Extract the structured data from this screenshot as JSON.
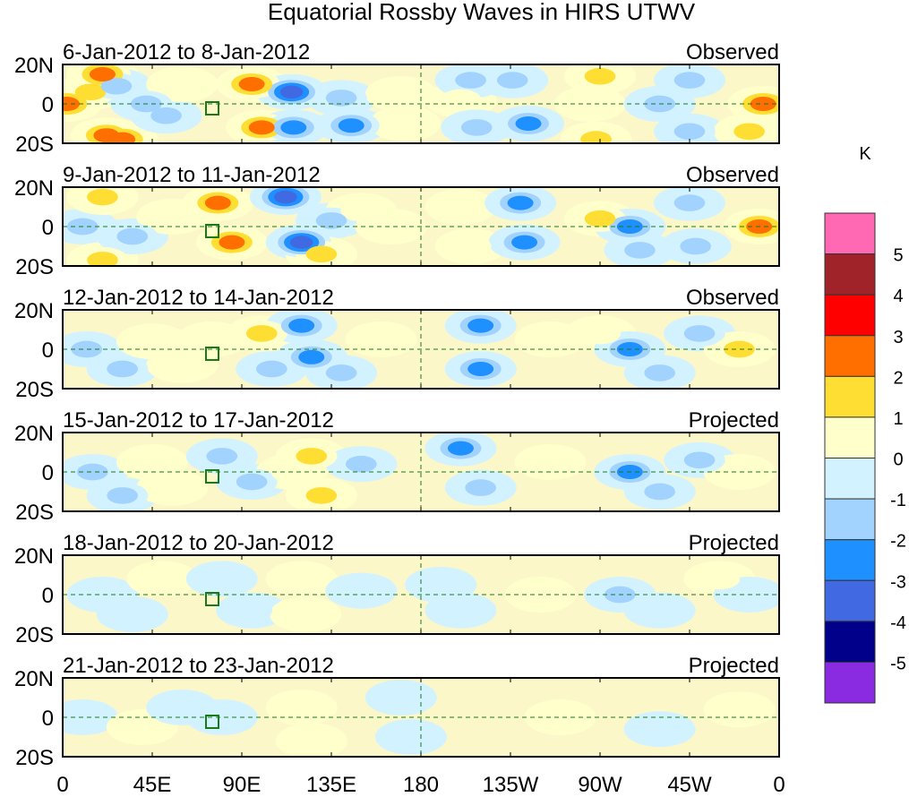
{
  "chart_data": {
    "type": "heatmap",
    "title": "Equatorial Rossby Waves in HIRS UTWV",
    "units_label": "K",
    "x_tick_labels": [
      "0",
      "45E",
      "90E",
      "135E",
      "180",
      "135W",
      "90W",
      "45W",
      "0"
    ],
    "x_ticks_deg": [
      0,
      45,
      90,
      135,
      180,
      225,
      270,
      315,
      360
    ],
    "y_tick_labels": [
      "20N",
      "0",
      "20S"
    ],
    "y_range": [
      -20,
      20
    ],
    "x_range": [
      0,
      360
    ],
    "colorbar": {
      "levels": [
        "5",
        "4",
        "3",
        "2",
        "1",
        "0",
        "-1",
        "-2",
        "-3",
        "-4",
        "-5"
      ],
      "colors": [
        "#ff69b4",
        "#a0232a",
        "#ff0000",
        "#ff6f00",
        "#ffde33",
        "#ffffcc",
        "#d2f2ff",
        "#a2d3ff",
        "#1e90ff",
        "#4169e1",
        "#00008b",
        "#8a2be2"
      ]
    },
    "panels": [
      {
        "date_range": "6-Jan-2012 to 8-Jan-2012",
        "status": "Observed",
        "blobs": [
          [
            2,
            0,
            3
          ],
          [
            20,
            15,
            3
          ],
          [
            22,
            -16,
            3
          ],
          [
            30,
            -18,
            3
          ],
          [
            14,
            6,
            2
          ],
          [
            27,
            9,
            -2
          ],
          [
            42,
            0,
            -2
          ],
          [
            52,
            -6,
            -2
          ],
          [
            60,
            10,
            1
          ],
          [
            95,
            10,
            3
          ],
          [
            100,
            -12,
            3
          ],
          [
            115,
            6,
            -4
          ],
          [
            116,
            -12,
            -3
          ],
          [
            140,
            3,
            -2
          ],
          [
            145,
            -11,
            -3
          ],
          [
            170,
            5,
            1
          ],
          [
            172,
            -10,
            1
          ],
          [
            200,
            2,
            1
          ],
          [
            205,
            12,
            -2
          ],
          [
            208,
            -12,
            -2
          ],
          [
            226,
            12,
            -2
          ],
          [
            234,
            -10,
            -3
          ],
          [
            265,
            0,
            1
          ],
          [
            270,
            14,
            2
          ],
          [
            268,
            -18,
            2
          ],
          [
            300,
            0,
            -2
          ],
          [
            315,
            12,
            -2
          ],
          [
            315,
            -14,
            -2
          ],
          [
            352,
            0,
            3
          ],
          [
            345,
            -14,
            2
          ]
        ]
      },
      {
        "date_range": "9-Jan-2012 to 11-Jan-2012",
        "status": "Observed",
        "blobs": [
          [
            10,
            0,
            -2
          ],
          [
            20,
            15,
            2
          ],
          [
            20,
            -17,
            2
          ],
          [
            35,
            -5,
            -2
          ],
          [
            55,
            5,
            1
          ],
          [
            78,
            12,
            3
          ],
          [
            85,
            -8,
            3
          ],
          [
            112,
            15,
            -4
          ],
          [
            120,
            -8,
            -4
          ],
          [
            135,
            3,
            -2
          ],
          [
            130,
            -14,
            2
          ],
          [
            150,
            8,
            1
          ],
          [
            165,
            0,
            1
          ],
          [
            200,
            10,
            1
          ],
          [
            205,
            -10,
            1
          ],
          [
            230,
            12,
            -3
          ],
          [
            232,
            -8,
            -3
          ],
          [
            270,
            4,
            2
          ],
          [
            285,
            0,
            -3
          ],
          [
            290,
            -12,
            -2
          ],
          [
            315,
            12,
            -2
          ],
          [
            318,
            -10,
            -2
          ],
          [
            350,
            0,
            3
          ]
        ]
      },
      {
        "date_range": "12-Jan-2012 to 14-Jan-2012",
        "status": "Observed",
        "blobs": [
          [
            12,
            0,
            -2
          ],
          [
            30,
            -10,
            -2
          ],
          [
            45,
            4,
            1
          ],
          [
            60,
            -8,
            1
          ],
          [
            75,
            5,
            1
          ],
          [
            100,
            8,
            2
          ],
          [
            105,
            -10,
            -2
          ],
          [
            120,
            12,
            -3
          ],
          [
            125,
            -4,
            -3
          ],
          [
            140,
            -12,
            -2
          ],
          [
            160,
            5,
            1
          ],
          [
            210,
            12,
            -3
          ],
          [
            210,
            -10,
            -3
          ],
          [
            245,
            5,
            1
          ],
          [
            270,
            8,
            1
          ],
          [
            285,
            0,
            -3
          ],
          [
            300,
            -12,
            -2
          ],
          [
            320,
            8,
            -2
          ],
          [
            340,
            0,
            2
          ]
        ]
      },
      {
        "date_range": "15-Jan-2012 to 17-Jan-2012",
        "status": "Projected",
        "blobs": [
          [
            15,
            0,
            -2
          ],
          [
            30,
            -12,
            -2
          ],
          [
            45,
            5,
            1
          ],
          [
            55,
            -8,
            1
          ],
          [
            80,
            8,
            -2
          ],
          [
            95,
            -5,
            -2
          ],
          [
            115,
            0,
            1
          ],
          [
            125,
            8,
            2
          ],
          [
            130,
            -12,
            2
          ],
          [
            150,
            4,
            -2
          ],
          [
            200,
            12,
            -3
          ],
          [
            210,
            -8,
            -2
          ],
          [
            245,
            5,
            1
          ],
          [
            285,
            0,
            -3
          ],
          [
            300,
            -10,
            -2
          ],
          [
            320,
            6,
            -2
          ],
          [
            340,
            0,
            1
          ]
        ]
      },
      {
        "date_range": "18-Jan-2012 to 20-Jan-2012",
        "status": "Projected",
        "blobs": [
          [
            20,
            0,
            -1
          ],
          [
            35,
            -10,
            -1
          ],
          [
            50,
            8,
            1
          ],
          [
            80,
            8,
            -1
          ],
          [
            95,
            -8,
            -1
          ],
          [
            120,
            8,
            1
          ],
          [
            122,
            -10,
            1
          ],
          [
            150,
            2,
            -1
          ],
          [
            190,
            5,
            -1
          ],
          [
            200,
            -8,
            -1
          ],
          [
            240,
            0,
            1
          ],
          [
            280,
            0,
            -2
          ],
          [
            300,
            -8,
            -1
          ],
          [
            330,
            8,
            1
          ],
          [
            345,
            0,
            -1
          ]
        ]
      },
      {
        "date_range": "21-Jan-2012 to 23-Jan-2012",
        "status": "Projected",
        "blobs": [
          [
            10,
            0,
            -1
          ],
          [
            40,
            -5,
            1
          ],
          [
            60,
            5,
            -1
          ],
          [
            80,
            0,
            -1
          ],
          [
            120,
            5,
            1
          ],
          [
            125,
            -12,
            1
          ],
          [
            170,
            10,
            -1
          ],
          [
            175,
            -10,
            -1
          ],
          [
            250,
            0,
            1
          ],
          [
            300,
            -6,
            -1
          ],
          [
            340,
            4,
            1
          ]
        ]
      }
    ]
  }
}
